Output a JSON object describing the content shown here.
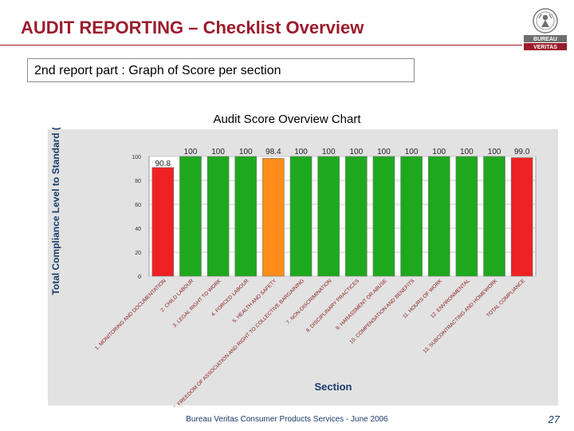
{
  "slide": {
    "title": "AUDIT REPORTING – Checklist Overview",
    "subtitle": "2nd report part : Graph of Score per section",
    "footer": "Bureau Veritas Consumer Products Services  -  June 2006",
    "page_number": "27"
  },
  "logo": {
    "top_text": "BUREAU",
    "bottom_text": "VERITAS",
    "icon": "bureau-veritas-emblem"
  },
  "colors": {
    "title": "#9b1c2c",
    "red": "#ee2222",
    "green": "#1ea81e",
    "orange": "#ff8c1a",
    "panel": "#e2e2e2",
    "footer": "#1a3a6a"
  },
  "chart_data": {
    "type": "bar",
    "title": "Audit Score Overview Chart",
    "ylabel": "Total Compliance Level to Standard (%)",
    "xlabel": "Section",
    "ylim": [
      0,
      100
    ],
    "yticks": [
      "100",
      "80",
      "60",
      "40",
      "20",
      "0"
    ],
    "grid": true,
    "categories": [
      "1. MONITORING AND DOCUMENTATION",
      "2. CHILD LABOUR",
      "3. LEGAL RIGHT TO WORK",
      "4. FORCED LABOUR",
      "5. HEALTH AND SAFETY",
      "6. FREEDOM OF ASSOCIATION AND RIGHT TO COLLECTIVE BARGAINING",
      "7. NON-DISCRIMINATION",
      "8. DISCIPLINARY PRACTICES",
      "9. HARASSMENT OR ABUSE",
      "10. COMPENSATION AND BENEFITS",
      "11. HOURS OF WORK",
      "12. ENVIRONMENTAL",
      "13. SUBCONTRACTING AND HOMEWORK",
      "TOTAL COMPLIANCE"
    ],
    "values": [
      90.8,
      100,
      100,
      100,
      98.4,
      100,
      100,
      100,
      100,
      100,
      100,
      100,
      100,
      99.0
    ],
    "value_labels": [
      "90.8",
      "100",
      "100",
      "100",
      "98.4",
      "100",
      "100",
      "100",
      "100",
      "100",
      "100",
      "100",
      "100",
      "99.0"
    ],
    "bar_colors": [
      "red",
      "green",
      "green",
      "green",
      "orange",
      "green",
      "green",
      "green",
      "green",
      "green",
      "green",
      "green",
      "green",
      "red"
    ]
  }
}
